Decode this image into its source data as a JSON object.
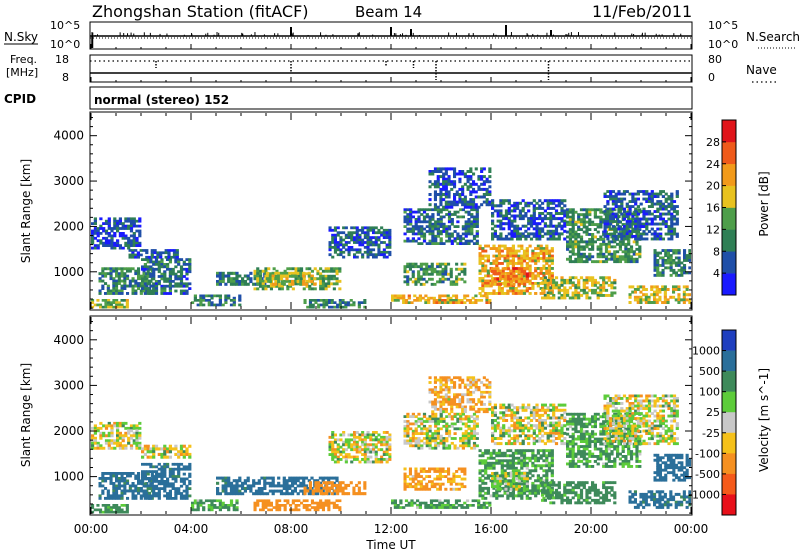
{
  "header": {
    "station": "Zhongshan Station (fitACF)",
    "beam": "Beam 14",
    "date": "11/Feb/2011"
  },
  "strip_labels": {
    "nsky": "N.Sky",
    "nsky_ticks": [
      "10^5",
      "10^0"
    ],
    "nsearch": "N.Search",
    "nsearch_ticks": [
      "10^5",
      "10^0"
    ],
    "freq": [
      "Freq.",
      "[MHz]"
    ],
    "freq_ticks": [
      "18",
      "8"
    ],
    "nave": "Nave",
    "nave_ticks": [
      "80",
      "0"
    ],
    "cpid": "CPID",
    "cpid_text": "normal (stereo) 152"
  },
  "colors": {
    "power": [
      "#1a1aff",
      "#1f4fa8",
      "#2f7f55",
      "#4e9e4a",
      "#e8c21f",
      "#f29a1a",
      "#ef5a1a",
      "#e0141a"
    ],
    "velocity": [
      "#1f3fbf",
      "#2a6f9a",
      "#3e8a5a",
      "#5dcc3a",
      "#c8c8c8",
      "#f5c11a",
      "#f59020",
      "#f55a1a",
      "#e8101a"
    ]
  },
  "chart_data": [
    {
      "type": "heatmap",
      "name": "power",
      "ylabel": "Slant Range [km]",
      "yticks": [
        1000,
        2000,
        3000,
        4000
      ],
      "ylim": [
        180,
        4500
      ],
      "xlim": [
        0,
        24
      ],
      "x_unit": "hours UT",
      "colorbar": {
        "label": "Power [dB]",
        "tick_labels": [
          "28",
          "24",
          "20",
          "16",
          "12",
          "8",
          "4"
        ],
        "range": [
          0,
          32
        ]
      },
      "echo_regions": [
        {
          "x": [
            0.0,
            1.5
          ],
          "y": [
            200,
            400
          ],
          "value": 16
        },
        {
          "x": [
            0.3,
            2.5
          ],
          "y": [
            500,
            1100
          ],
          "value": 10
        },
        {
          "x": [
            0.0,
            2.0
          ],
          "y": [
            1500,
            2200
          ],
          "value": 6
        },
        {
          "x": [
            2.0,
            4.0
          ],
          "y": [
            500,
            1300
          ],
          "value": 8
        },
        {
          "x": [
            1.5,
            3.5
          ],
          "y": [
            1300,
            1500
          ],
          "value": 7
        },
        {
          "x": [
            4.0,
            6.0
          ],
          "y": [
            250,
            500
          ],
          "value": 10
        },
        {
          "x": [
            5.0,
            7.0
          ],
          "y": [
            700,
            1000
          ],
          "value": 9
        },
        {
          "x": [
            6.5,
            10.0
          ],
          "y": [
            600,
            1100
          ],
          "value": 14
        },
        {
          "x": [
            7.0,
            9.0
          ],
          "y": [
            700,
            1000
          ],
          "value": 18
        },
        {
          "x": [
            8.5,
            11.0
          ],
          "y": [
            200,
            400
          ],
          "value": 10
        },
        {
          "x": [
            9.5,
            12.0
          ],
          "y": [
            1300,
            2000
          ],
          "value": 7
        },
        {
          "x": [
            12.0,
            16.0
          ],
          "y": [
            300,
            500
          ],
          "value": 20
        },
        {
          "x": [
            12.5,
            15.0
          ],
          "y": [
            700,
            1200
          ],
          "value": 12
        },
        {
          "x": [
            12.5,
            15.5
          ],
          "y": [
            1600,
            2400
          ],
          "value": 8
        },
        {
          "x": [
            13.5,
            16.0
          ],
          "y": [
            2400,
            3300
          ],
          "value": 6
        },
        {
          "x": [
            15.5,
            18.5
          ],
          "y": [
            500,
            1600
          ],
          "value": 20
        },
        {
          "x": [
            16.0,
            17.5
          ],
          "y": [
            700,
            1100
          ],
          "value": 24
        },
        {
          "x": [
            16.0,
            19.0
          ],
          "y": [
            1700,
            2600
          ],
          "value": 7
        },
        {
          "x": [
            18.0,
            21.0
          ],
          "y": [
            400,
            900
          ],
          "value": 16
        },
        {
          "x": [
            19.0,
            22.0
          ],
          "y": [
            1200,
            2400
          ],
          "value": 12
        },
        {
          "x": [
            20.5,
            23.5
          ],
          "y": [
            1700,
            2800
          ],
          "value": 7
        },
        {
          "x": [
            21.5,
            24.0
          ],
          "y": [
            300,
            700
          ],
          "value": 18
        },
        {
          "x": [
            22.5,
            24.0
          ],
          "y": [
            900,
            1500
          ],
          "value": 10
        }
      ]
    },
    {
      "type": "heatmap",
      "name": "velocity",
      "ylabel": "Slant Range [km]",
      "xlabel": "Time UT",
      "yticks": [
        1000,
        2000,
        3000,
        4000
      ],
      "ylim": [
        180,
        4500
      ],
      "xlim": [
        0,
        24
      ],
      "x_unit": "hours UT",
      "xticks": [
        "00:00",
        "04:00",
        "08:00",
        "12:00",
        "16:00",
        "20:00",
        "00:00"
      ],
      "colorbar": {
        "label": "Velocity [m s^-1]",
        "tick_labels": [
          "1000",
          "500",
          "100",
          "25",
          "-25",
          "-100",
          "-500",
          "-1000"
        ],
        "range": [
          -1200,
          1200
        ]
      },
      "echo_regions": [
        {
          "x": [
            0.0,
            1.5
          ],
          "y": [
            200,
            400
          ],
          "value": 200
        },
        {
          "x": [
            0.3,
            2.5
          ],
          "y": [
            500,
            1100
          ],
          "value": 600
        },
        {
          "x": [
            0.0,
            2.0
          ],
          "y": [
            1600,
            2200
          ],
          "value": 0
        },
        {
          "x": [
            2.0,
            4.0
          ],
          "y": [
            500,
            1300
          ],
          "value": 600
        },
        {
          "x": [
            2.0,
            4.0
          ],
          "y": [
            1400,
            1700
          ],
          "value": 0
        },
        {
          "x": [
            4.0,
            6.0
          ],
          "y": [
            250,
            500
          ],
          "value": 150
        },
        {
          "x": [
            5.0,
            7.0
          ],
          "y": [
            600,
            1000
          ],
          "value": 600
        },
        {
          "x": [
            6.5,
            10.0
          ],
          "y": [
            250,
            500
          ],
          "value": -300
        },
        {
          "x": [
            7.0,
            10.0
          ],
          "y": [
            600,
            1000
          ],
          "value": 700
        },
        {
          "x": [
            8.5,
            11.0
          ],
          "y": [
            600,
            900
          ],
          "value": -300
        },
        {
          "x": [
            9.5,
            12.0
          ],
          "y": [
            1300,
            2000
          ],
          "value": 0
        },
        {
          "x": [
            12.0,
            16.0
          ],
          "y": [
            300,
            500
          ],
          "value": 150
        },
        {
          "x": [
            12.5,
            15.0
          ],
          "y": [
            700,
            1200
          ],
          "value": -150
        },
        {
          "x": [
            12.5,
            15.5
          ],
          "y": [
            1600,
            2400
          ],
          "value": 0
        },
        {
          "x": [
            13.5,
            16.0
          ],
          "y": [
            2400,
            3200
          ],
          "value": -100
        },
        {
          "x": [
            15.5,
            18.5
          ],
          "y": [
            500,
            1600
          ],
          "value": 150
        },
        {
          "x": [
            16.0,
            17.5
          ],
          "y": [
            700,
            1100
          ],
          "value": 50
        },
        {
          "x": [
            16.0,
            19.0
          ],
          "y": [
            1700,
            2600
          ],
          "value": 0
        },
        {
          "x": [
            18.0,
            21.0
          ],
          "y": [
            400,
            900
          ],
          "value": 200
        },
        {
          "x": [
            19.0,
            22.0
          ],
          "y": [
            1200,
            2400
          ],
          "value": 150
        },
        {
          "x": [
            20.5,
            23.5
          ],
          "y": [
            1700,
            2800
          ],
          "value": 0
        },
        {
          "x": [
            21.5,
            24.0
          ],
          "y": [
            300,
            700
          ],
          "value": 600
        },
        {
          "x": [
            22.5,
            24.0
          ],
          "y": [
            900,
            1500
          ],
          "value": 800
        }
      ]
    }
  ]
}
